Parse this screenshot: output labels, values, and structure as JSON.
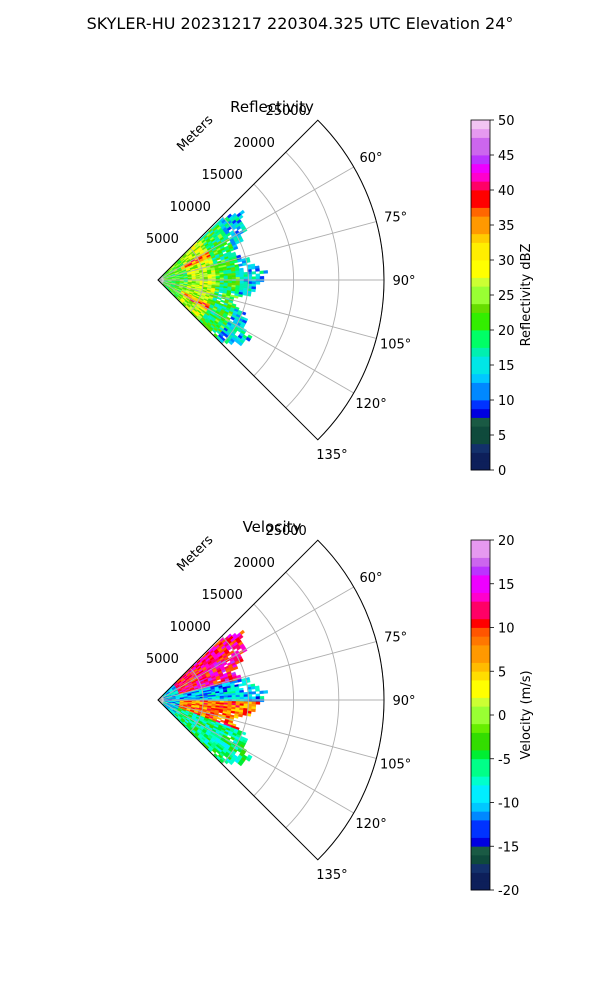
{
  "figure": {
    "suptitle": "SKYLER-HU  20231217  220304.325 UTC Elevation 24°"
  },
  "chart_data": [
    {
      "type": "heatmap",
      "plot": "polar-sector",
      "title": "Reflectivity",
      "radial_label": "Meters",
      "radial_ticks": [
        5000,
        10000,
        15000,
        20000,
        25000
      ],
      "rlim": [
        0,
        25000
      ],
      "angle_ticks": [
        "60°",
        "75°",
        "90°",
        "105°",
        "120°",
        "135°"
      ],
      "angle_range_deg": [
        45,
        135
      ],
      "grid": true,
      "colorbar": {
        "label": "Reflectivity dBZ",
        "range": [
          0,
          50
        ],
        "ticks": [
          0,
          5,
          10,
          15,
          20,
          25,
          30,
          35,
          40,
          45,
          50
        ]
      },
      "data_extent_m": [
        0,
        12000
      ],
      "field_summary": [
        {
          "range_m": [
            0,
            3000
          ],
          "value": 22
        },
        {
          "range_m": [
            3000,
            6000
          ],
          "value": 26
        },
        {
          "range_m": [
            6000,
            9000
          ],
          "value": 20
        },
        {
          "range_m": [
            9000,
            12000
          ],
          "value": 14
        }
      ]
    },
    {
      "type": "heatmap",
      "plot": "polar-sector",
      "title": "Velocity",
      "radial_label": "Meters",
      "radial_ticks": [
        5000,
        10000,
        15000,
        20000,
        25000
      ],
      "rlim": [
        0,
        25000
      ],
      "angle_ticks": [
        "60°",
        "75°",
        "90°",
        "105°",
        "120°",
        "135°"
      ],
      "angle_range_deg": [
        45,
        135
      ],
      "grid": true,
      "colorbar": {
        "label": "Velocity (m/s)",
        "range": [
          -20,
          20
        ],
        "ticks": [
          -20,
          -15,
          -10,
          -5,
          0,
          5,
          10,
          15,
          20
        ]
      },
      "data_extent_m": [
        0,
        12000
      ],
      "field_summary": [
        {
          "azimuth_deg": [
            45,
            75
          ],
          "value": 12
        },
        {
          "azimuth_deg": [
            75,
            90
          ],
          "value": -10
        },
        {
          "azimuth_deg": [
            90,
            110
          ],
          "value": 8
        },
        {
          "azimuth_deg": [
            110,
            135
          ],
          "value": -6
        }
      ]
    }
  ]
}
